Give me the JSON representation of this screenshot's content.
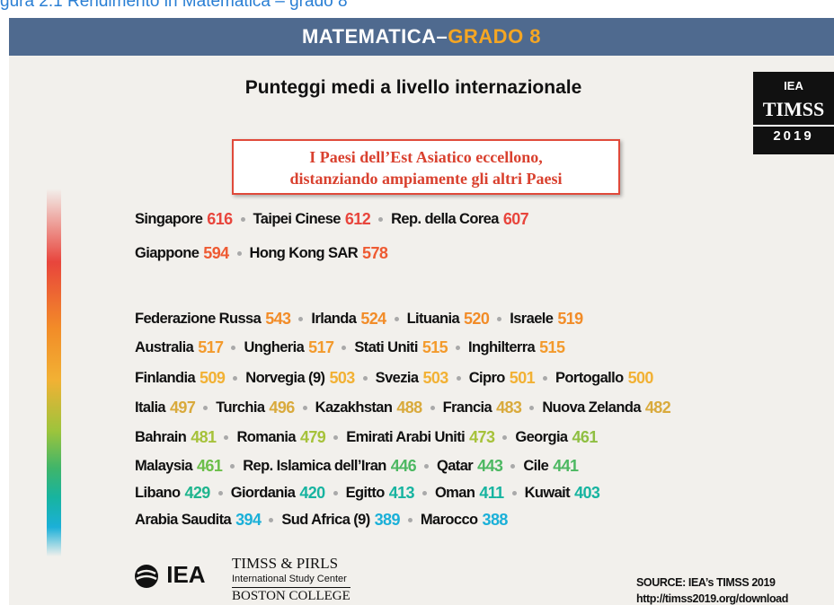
{
  "caption": "gura 2.1 Rendimento in Matematica – grado 8",
  "header": {
    "title_part1": "MATEMATICA–",
    "title_part2": "GRADO 8"
  },
  "subtitle": "Punteggi medi a livello internazionale",
  "logo": {
    "org": "IEA",
    "name": "TIMSS",
    "year": "2019"
  },
  "callout": {
    "line1": "I Paesi dell’Est Asiatico eccellono,",
    "line2": "distanziando ampiamente gli altri Paesi"
  },
  "rows": [
    [
      {
        "name": "Singapore",
        "score": 616,
        "color": "#e8453c"
      },
      {
        "name": "Taipei Cinese",
        "score": 612,
        "color": "#e8453c"
      },
      {
        "name": "Rep. della Corea",
        "score": 607,
        "color": "#e8453c"
      }
    ],
    [
      {
        "name": "Giappone",
        "score": 594,
        "color": "#ee5a32"
      },
      {
        "name": "Hong Kong SAR",
        "score": 578,
        "color": "#ee5a32"
      }
    ],
    [
      {
        "name": "Federazione Russa",
        "score": 543,
        "color": "#f28c28"
      },
      {
        "name": "Irlanda",
        "score": 524,
        "color": "#f28c28"
      },
      {
        "name": "Lituania",
        "score": 520,
        "color": "#f28c28"
      },
      {
        "name": "Israele",
        "score": 519,
        "color": "#f28c28"
      }
    ],
    [
      {
        "name": "Australia",
        "score": 517,
        "color": "#f39a2c"
      },
      {
        "name": "Ungheria",
        "score": 517,
        "color": "#f39a2c"
      },
      {
        "name": "Stati Uniti",
        "score": 515,
        "color": "#f39a2c"
      },
      {
        "name": "Inghilterra",
        "score": 515,
        "color": "#f39a2c"
      }
    ],
    [
      {
        "name": "Finlandia",
        "score": 509,
        "color": "#f2b134"
      },
      {
        "name": "Norvegia (9)",
        "score": 503,
        "color": "#f2b134"
      },
      {
        "name": "Svezia",
        "score": 503,
        "color": "#f2b134"
      },
      {
        "name": "Cipro",
        "score": 501,
        "color": "#f2b134"
      },
      {
        "name": "Portogallo",
        "score": 500,
        "color": "#f2b134"
      }
    ],
    [
      {
        "name": "Italia",
        "score": 497,
        "color": "#d9aa3c"
      },
      {
        "name": "Turchia",
        "score": 496,
        "color": "#d9aa3c"
      },
      {
        "name": "Kazakhstan",
        "score": 488,
        "color": "#d9aa3c"
      },
      {
        "name": "Francia",
        "score": 483,
        "color": "#d9aa3c"
      },
      {
        "name": "Nuova Zelanda",
        "score": 482,
        "color": "#d9aa3c"
      }
    ],
    [
      {
        "name": "Bahrain",
        "score": 481,
        "color": "#a6c23a"
      },
      {
        "name": "Romania",
        "score": 479,
        "color": "#a6c23a"
      },
      {
        "name": "Emirati Arabi Uniti",
        "score": 473,
        "color": "#a6c23a"
      },
      {
        "name": "Georgia",
        "score": 461,
        "color": "#8fbf42"
      }
    ],
    [
      {
        "name": "Malaysia",
        "score": 461,
        "color": "#6cbf4a"
      },
      {
        "name": "Rep. Islamica dell’Iran",
        "score": 446,
        "color": "#4db862"
      },
      {
        "name": "Qatar",
        "score": 443,
        "color": "#4db862"
      },
      {
        "name": "Cile",
        "score": 441,
        "color": "#4db862"
      }
    ],
    [
      {
        "name": "Libano",
        "score": 429,
        "color": "#1fb58e"
      },
      {
        "name": "Giordania",
        "score": 420,
        "color": "#17b4a0"
      },
      {
        "name": "Egitto",
        "score": 413,
        "color": "#17b4a0"
      },
      {
        "name": "Oman",
        "score": 411,
        "color": "#17b4a0"
      },
      {
        "name": "Kuwait",
        "score": 403,
        "color": "#17b4a0"
      }
    ],
    [
      {
        "name": "Arabia Saudita",
        "score": 394,
        "color": "#1bb0d8"
      },
      {
        "name": "Sud Africa (9)",
        "score": 389,
        "color": "#1bb0d8"
      },
      {
        "name": "Marocco",
        "score": 388,
        "color": "#1bb0d8"
      }
    ]
  ],
  "footer": {
    "logo": "IEA",
    "center_name": "TIMSS & PIRLS",
    "center_sub": "International Study Center",
    "college": "BOSTON COLLEGE",
    "source": "SOURCE: IEA’s TIMSS 2019",
    "url": "http://timss2019.org/download"
  }
}
